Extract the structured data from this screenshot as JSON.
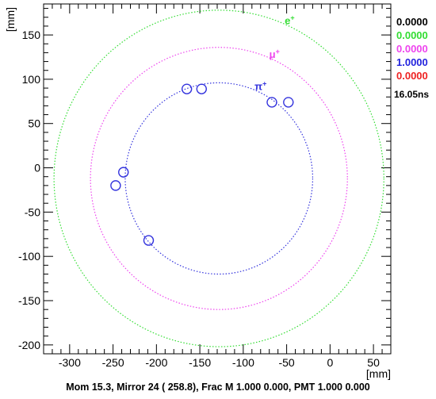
{
  "chart_data": {
    "type": "scatter",
    "xlabel": "[mm]",
    "ylabel": "[mm]",
    "xlim": [
      -330,
      70
    ],
    "ylim": [
      -210,
      185
    ],
    "x_ticks": [
      -300,
      -250,
      -200,
      -150,
      -100,
      -50,
      0,
      50
    ],
    "y_ticks": [
      -200,
      -150,
      -100,
      -50,
      0,
      50,
      100,
      150
    ],
    "rings": [
      {
        "name": "e+",
        "label": "e",
        "sup": "+",
        "center": [
          -128,
          -12
        ],
        "radius": 190,
        "color": "#33dd33"
      },
      {
        "name": "mu+",
        "label": "μ",
        "sup": "+",
        "center": [
          -128,
          -12
        ],
        "radius": 148,
        "color": "#ee44ee"
      },
      {
        "name": "pi+",
        "label": "π",
        "sup": "+",
        "center": [
          -128,
          -12
        ],
        "radius": 108,
        "color": "#3333dd"
      }
    ],
    "hits": [
      {
        "x": -165,
        "y": 89
      },
      {
        "x": -148,
        "y": 89
      },
      {
        "x": -67,
        "y": 74
      },
      {
        "x": -48,
        "y": 74
      },
      {
        "x": -238,
        "y": -5
      },
      {
        "x": -247,
        "y": -20
      },
      {
        "x": -209,
        "y": -82
      }
    ],
    "hit_color": "#3333dd"
  },
  "legend": [
    {
      "value": "0.0000",
      "color": "#000000"
    },
    {
      "value": "0.0000",
      "color": "#33dd33"
    },
    {
      "value": "0.0000",
      "color": "#ee44ee"
    },
    {
      "value": "1.0000",
      "color": "#2222dd"
    },
    {
      "value": "0.0000",
      "color": "#ee2222"
    }
  ],
  "timing": "16.05ns",
  "footer": "Mom  15.3, Mirror 24 (  258.8), Frac M 1.000 0.000, PMT 1.000 0.000"
}
